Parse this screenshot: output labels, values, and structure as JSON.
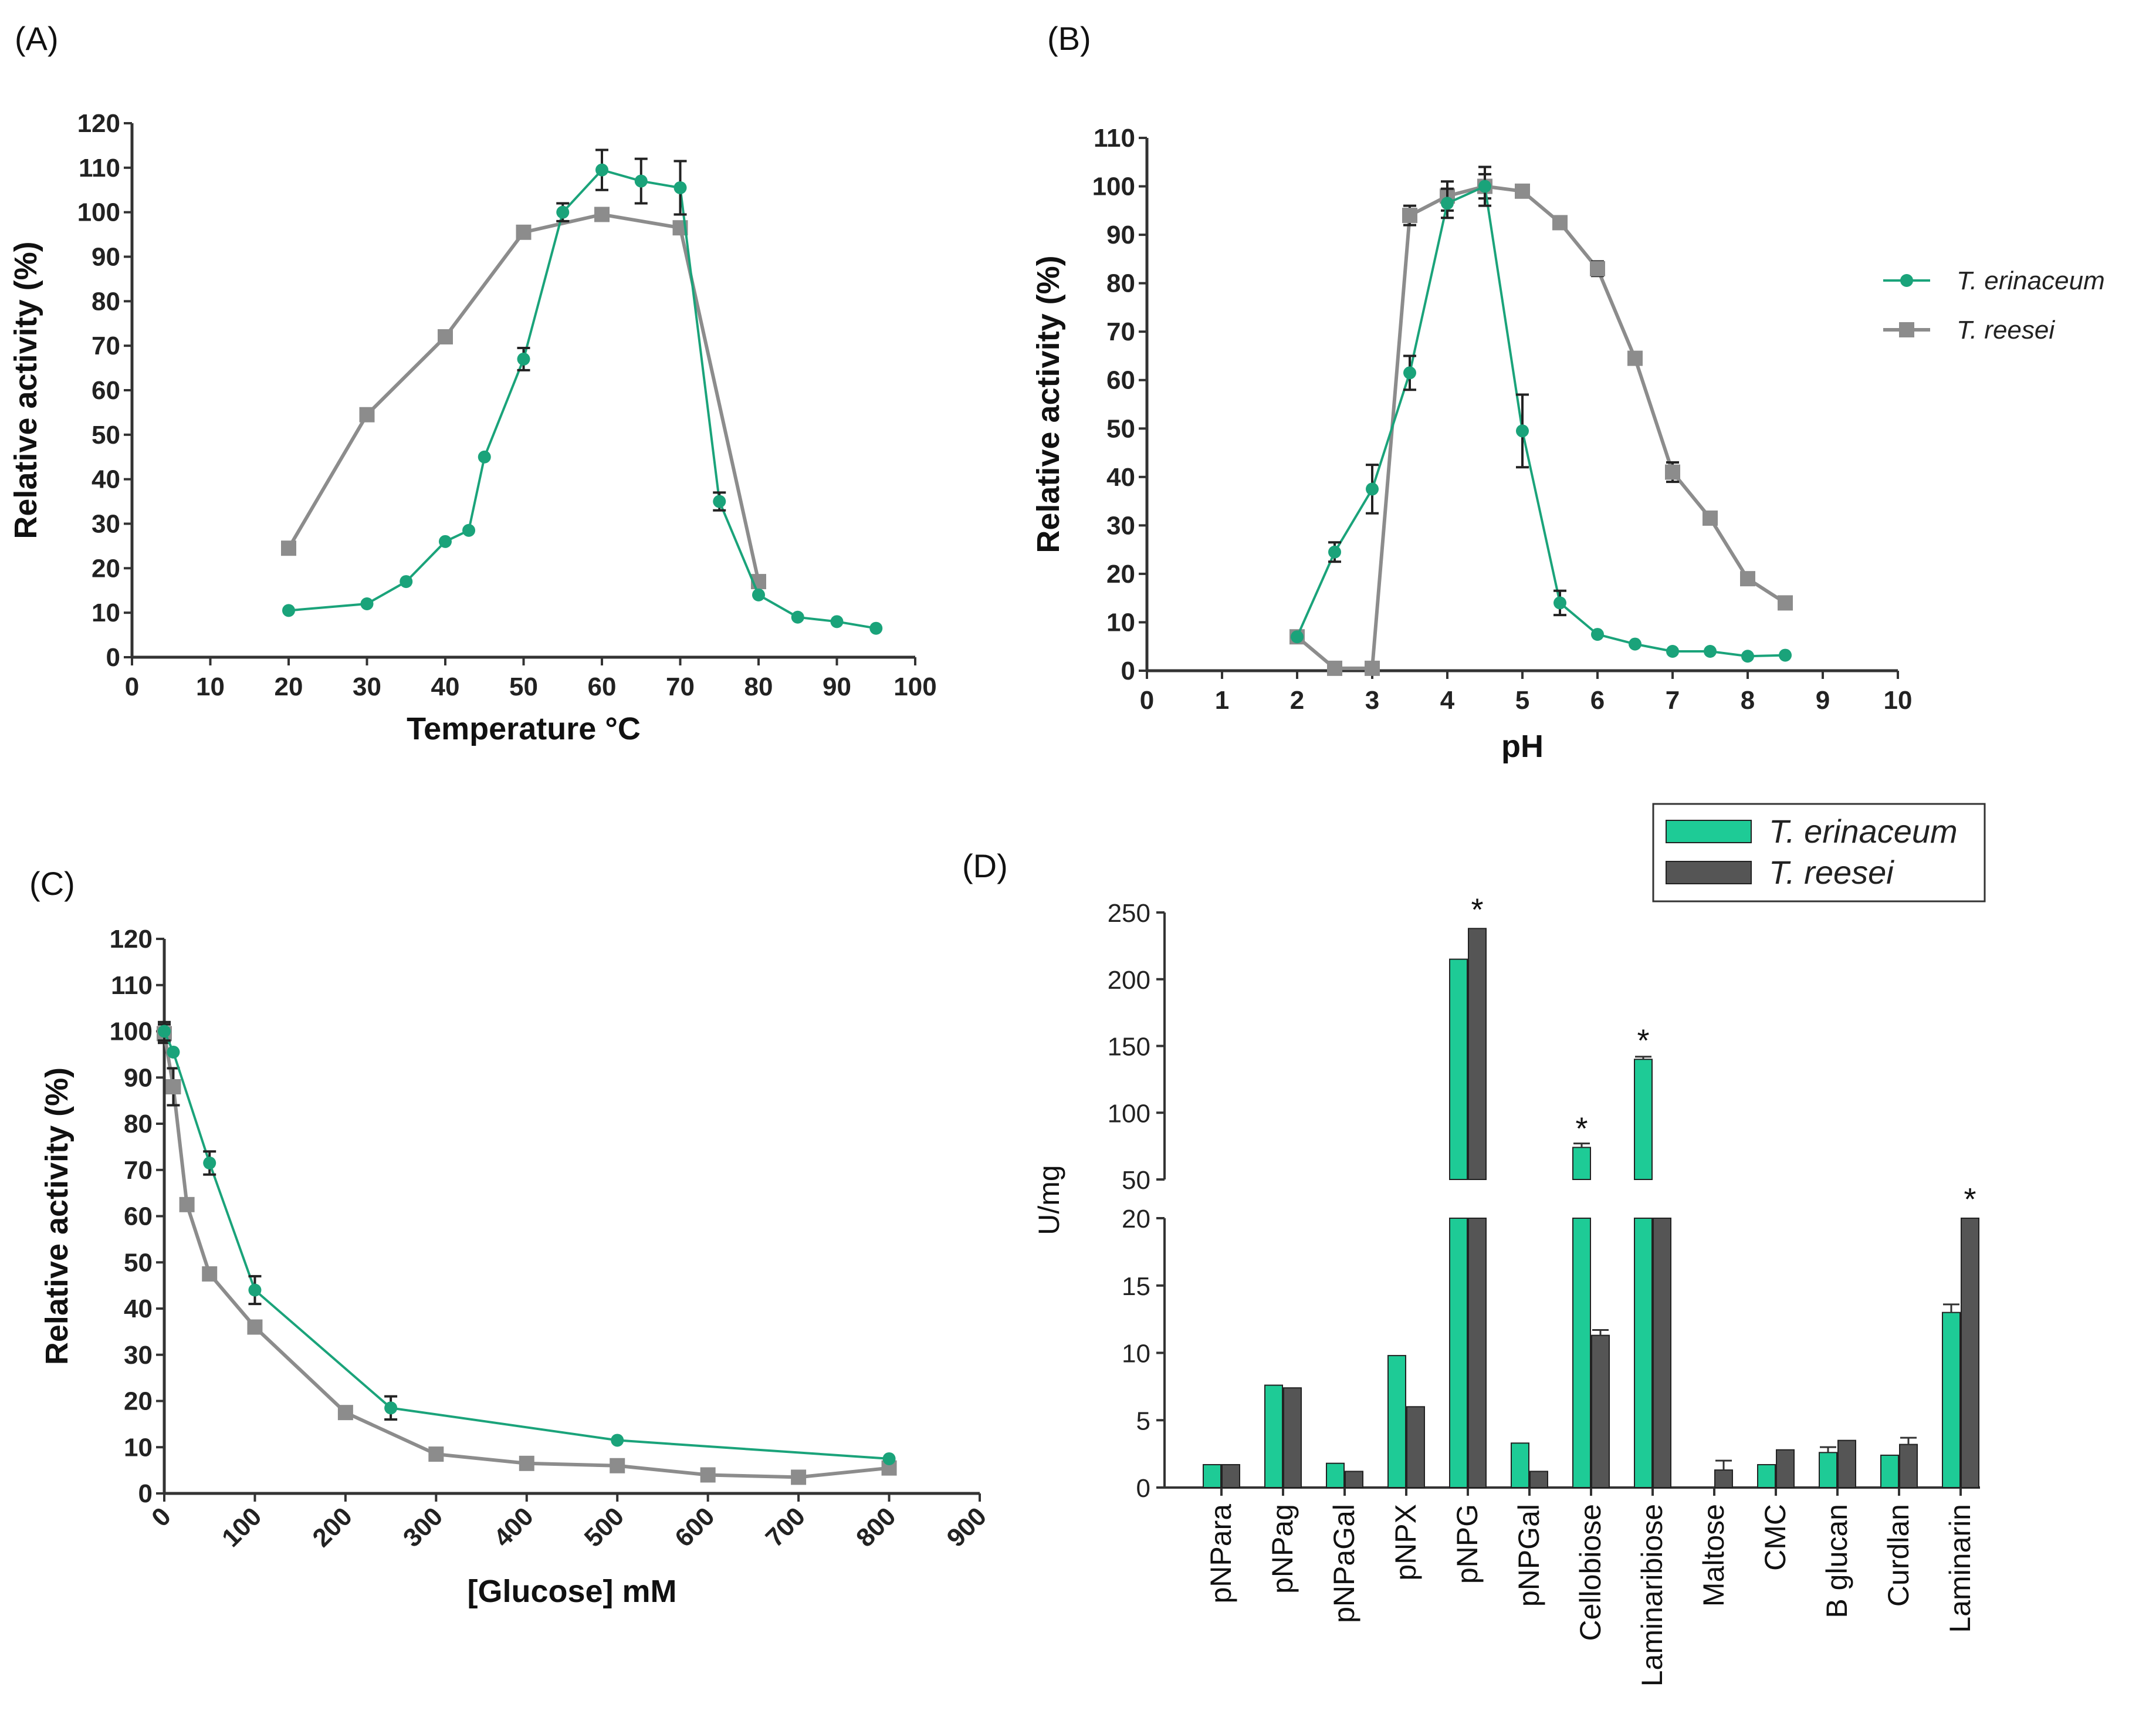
{
  "colors": {
    "erinaceum": "#1aa37a",
    "reesei": "#8c8c8c",
    "bar_erinaceum": "#1ecb96",
    "bar_reesei": "#555555"
  },
  "legend": {
    "erinaceum": "T. erinaceum",
    "reesei": "T. reesei"
  },
  "chart_data": [
    {
      "id": "A",
      "panel_label": "(A)",
      "type": "line",
      "xlabel": "Temperature °C",
      "ylabel": "Relative activity (%)",
      "xlim": [
        0,
        100
      ],
      "ylim": [
        0,
        120
      ],
      "xticks": [
        0,
        10,
        20,
        30,
        40,
        50,
        60,
        70,
        80,
        90,
        100
      ],
      "yticks": [
        0,
        10,
        20,
        30,
        40,
        50,
        60,
        70,
        80,
        90,
        100,
        110,
        120
      ],
      "series": [
        {
          "name": "T. erinaceum",
          "marker": "circle",
          "x": [
            20,
            30,
            35,
            40,
            43,
            45,
            50,
            55,
            60,
            65,
            70,
            75,
            80,
            85,
            90,
            95
          ],
          "y": [
            10.5,
            12,
            17,
            26,
            28.5,
            45,
            67,
            100,
            109.5,
            107,
            105.5,
            35,
            14,
            9,
            8,
            6.5
          ],
          "err": [
            0,
            0,
            0,
            0,
            0,
            0,
            2.5,
            2,
            4.5,
            5,
            6,
            2,
            0,
            0,
            0,
            0
          ]
        },
        {
          "name": "T. reesei",
          "marker": "square",
          "x": [
            20,
            30,
            40,
            50,
            60,
            70,
            80
          ],
          "y": [
            24.5,
            54.5,
            72,
            95.5,
            99.5,
            96.5,
            17
          ],
          "err": [
            0,
            0,
            0,
            0,
            0,
            0,
            0
          ]
        }
      ]
    },
    {
      "id": "B",
      "panel_label": "(B)",
      "type": "line",
      "xlabel": "pH",
      "ylabel": "Relative activity (%)",
      "xlim": [
        0,
        10
      ],
      "ylim": [
        0,
        110
      ],
      "xticks": [
        0,
        1,
        2,
        3,
        4,
        5,
        6,
        7,
        8,
        9,
        10
      ],
      "yticks": [
        0,
        10,
        20,
        30,
        40,
        50,
        60,
        70,
        80,
        90,
        100,
        110
      ],
      "series": [
        {
          "name": "T. erinaceum",
          "marker": "circle",
          "x": [
            2,
            2.5,
            3,
            3.5,
            4,
            4.5,
            5,
            5.5,
            6,
            6.5,
            7,
            7.5,
            8,
            8.5
          ],
          "y": [
            7,
            24.5,
            37.5,
            61.5,
            96.5,
            100,
            49.5,
            14,
            7.5,
            5.5,
            4,
            4,
            3,
            3.2
          ],
          "err": [
            0,
            2,
            5,
            3.5,
            3,
            4,
            7.5,
            2.5,
            0,
            0,
            0,
            0,
            0,
            0
          ]
        },
        {
          "name": "T. reesei",
          "marker": "square",
          "x": [
            2,
            2.5,
            3,
            3.5,
            4,
            4.5,
            5,
            5.5,
            6,
            6.5,
            7,
            7.5,
            8,
            8.5
          ],
          "y": [
            7,
            0.5,
            0.5,
            94,
            98,
            100,
            99,
            92.5,
            83,
            64.5,
            41,
            31.5,
            19,
            14
          ],
          "err": [
            0,
            0,
            0,
            2,
            3,
            2.5,
            0,
            0,
            1.5,
            0,
            2,
            0,
            0,
            0
          ]
        }
      ]
    },
    {
      "id": "C",
      "panel_label": "(C)",
      "type": "line",
      "xlabel": "[Glucose] mM",
      "ylabel": "Relative activity (%)",
      "xlim": [
        0,
        900
      ],
      "ylim": [
        0,
        120
      ],
      "xticks": [
        0,
        100,
        200,
        300,
        400,
        500,
        600,
        700,
        800,
        900
      ],
      "yticks": [
        0,
        10,
        20,
        30,
        40,
        50,
        60,
        70,
        80,
        90,
        100,
        110,
        120
      ],
      "series": [
        {
          "name": "T. erinaceum",
          "marker": "circle",
          "x": [
            0,
            10,
            50,
            100,
            250,
            500,
            800
          ],
          "y": [
            100,
            95.5,
            71.5,
            44,
            18.5,
            11.5,
            7.5
          ],
          "err": [
            2,
            0,
            2.5,
            3,
            2.5,
            0,
            0
          ]
        },
        {
          "name": "T. reesei",
          "marker": "square",
          "x": [
            0,
            10,
            25,
            50,
            100,
            200,
            300,
            400,
            500,
            600,
            700,
            800
          ],
          "y": [
            99.5,
            88,
            62.5,
            47.5,
            36,
            17.5,
            8.5,
            6.5,
            6,
            4,
            3.5,
            5.5
          ],
          "err": [
            2,
            4,
            0,
            0,
            0,
            0,
            0,
            0,
            0,
            0,
            0,
            0
          ]
        }
      ]
    },
    {
      "id": "D",
      "panel_label": "(D)",
      "type": "bar",
      "ylabel": "U/mg",
      "categories": [
        "pNPara",
        "pNPag",
        "pNPaGal",
        "pNPX",
        "pNPG",
        "pNPGal",
        "Cellobiose",
        "Laminaribiose",
        "Maltose",
        "CMC",
        "B glucan",
        "Curdlan",
        "Laminarin"
      ],
      "yticks_lower": [
        0,
        5,
        10,
        15,
        20
      ],
      "yticks_upper": [
        50,
        100,
        150,
        200,
        250
      ],
      "ylim_lower": [
        0,
        20
      ],
      "ylim_upper": [
        50,
        250
      ],
      "series": [
        {
          "name": "T. erinaceum",
          "values": [
            1.7,
            7.6,
            1.8,
            9.8,
            215,
            3.3,
            74,
            140,
            0,
            1.7,
            2.6,
            2.4,
            13
          ],
          "err": [
            0,
            0,
            0,
            0,
            0,
            0,
            3,
            2,
            0,
            0,
            0.4,
            0,
            0.6
          ]
        },
        {
          "name": "T. reesei",
          "values": [
            1.7,
            7.4,
            1.2,
            6,
            238,
            1.2,
            11.3,
            20,
            1.3,
            2.8,
            3.5,
            3.2,
            20
          ],
          "err": [
            0,
            0,
            0,
            0,
            0,
            0,
            0.4,
            0,
            0.7,
            0,
            0,
            0.5,
            0
          ]
        }
      ],
      "significance": [
        {
          "category": "pNPG",
          "series": "T. reesei",
          "label": "*"
        },
        {
          "category": "Cellobiose",
          "series": "T. erinaceum",
          "label": "*"
        },
        {
          "category": "Laminaribiose",
          "series": "T. erinaceum",
          "label": "*"
        },
        {
          "category": "Laminarin",
          "series": "T. reesei",
          "label": "*"
        }
      ]
    }
  ]
}
